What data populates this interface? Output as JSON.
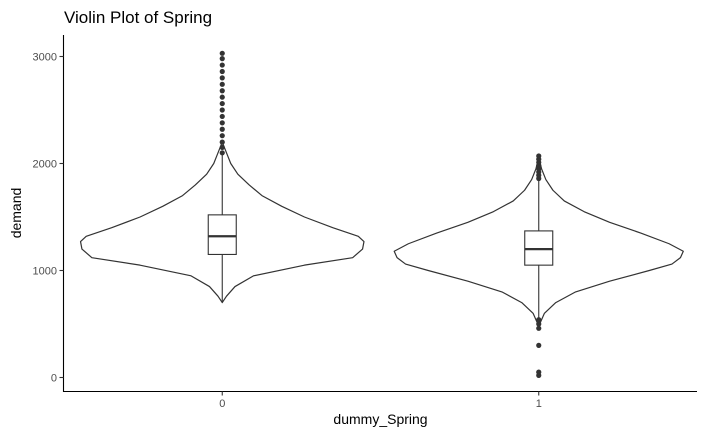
{
  "chart_data": {
    "type": "violin",
    "title": "Violin Plot of Spring",
    "xlabel": "dummy_Spring",
    "ylabel": "demand",
    "categories": [
      "0",
      "1"
    ],
    "yticks": [
      0,
      1000,
      2000,
      3000
    ],
    "ylim": [
      -120,
      3160
    ],
    "grid": false,
    "groups": [
      {
        "name": "0",
        "min": 700,
        "q1": 1150,
        "median": 1320,
        "q3": 1520,
        "whisker_low": 700,
        "whisker_high": 2080,
        "violin_top": 2200,
        "outliers": [
          2100,
          2150,
          2200,
          2260,
          2320,
          2380,
          2440,
          2500,
          2560,
          2620,
          2680,
          2740,
          2800,
          2860,
          2920,
          2980,
          3030
        ],
        "density": [
          [
            700,
            0.0
          ],
          [
            760,
            0.03
          ],
          [
            850,
            0.09
          ],
          [
            950,
            0.22
          ],
          [
            1050,
            0.58
          ],
          [
            1120,
            0.92
          ],
          [
            1200,
            0.99
          ],
          [
            1270,
            1.0
          ],
          [
            1320,
            0.96
          ],
          [
            1400,
            0.78
          ],
          [
            1500,
            0.58
          ],
          [
            1600,
            0.42
          ],
          [
            1700,
            0.28
          ],
          [
            1800,
            0.19
          ],
          [
            1900,
            0.11
          ],
          [
            2000,
            0.06
          ],
          [
            2100,
            0.03
          ],
          [
            2200,
            0.0
          ]
        ]
      },
      {
        "name": "1",
        "min": 20,
        "q1": 1050,
        "median": 1200,
        "q3": 1370,
        "whisker_low": 560,
        "whisker_high": 1840,
        "violin_bottom": 480,
        "violin_top": 2060,
        "outliers": [
          20,
          50,
          300,
          460,
          500,
          540,
          1860,
          1890,
          1920,
          1950,
          1980,
          2010,
          2040,
          2070
        ],
        "density": [
          [
            480,
            0.0
          ],
          [
            600,
            0.04
          ],
          [
            700,
            0.12
          ],
          [
            800,
            0.26
          ],
          [
            900,
            0.5
          ],
          [
            1000,
            0.78
          ],
          [
            1060,
            0.94
          ],
          [
            1120,
            1.0
          ],
          [
            1180,
            1.02
          ],
          [
            1250,
            0.92
          ],
          [
            1350,
            0.72
          ],
          [
            1450,
            0.5
          ],
          [
            1550,
            0.32
          ],
          [
            1650,
            0.18
          ],
          [
            1750,
            0.1
          ],
          [
            1850,
            0.05
          ],
          [
            1950,
            0.02
          ],
          [
            2060,
            0.0
          ]
        ]
      }
    ]
  }
}
